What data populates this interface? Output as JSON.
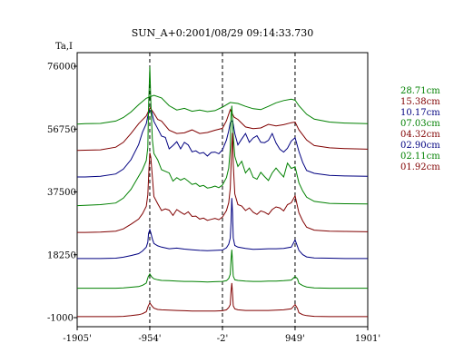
{
  "chart_data": {
    "type": "line",
    "title": "SUN_A+0:2001/08/29 09:14:33.730",
    "ylabel": "Ta,I",
    "xlabel": "",
    "xlim": [
      -1905,
      1901
    ],
    "ylim": [
      -1000,
      76000
    ],
    "x_tick_labels": [
      "-1905'",
      "-954'",
      "-2'",
      "949'",
      "1901'"
    ],
    "x_tick_values": [
      -1905,
      -954,
      -2,
      949,
      1901
    ],
    "y_tick_labels": [
      "76000",
      "56750",
      "37500",
      "18250",
      "-1000"
    ],
    "y_tick_values": [
      76000,
      56750,
      37500,
      18250,
      -1000
    ],
    "vlines": [
      -954,
      -2,
      949
    ],
    "series": [
      {
        "name": "28.71cm",
        "color": "#008000",
        "x": [
          -1905,
          -1800,
          -1600,
          -1400,
          -1300,
          -1200,
          -1100,
          -1000,
          -900,
          -800,
          -700,
          -600,
          -500,
          -400,
          -300,
          -200,
          -100,
          -2,
          100,
          200,
          300,
          400,
          500,
          600,
          700,
          800,
          900,
          949,
          1000,
          1100,
          1200,
          1400,
          1600,
          1901
        ],
        "y": [
          58300,
          58400,
          58500,
          59200,
          60300,
          62000,
          64200,
          66200,
          67100,
          66300,
          63900,
          62600,
          63100,
          62200,
          62600,
          62100,
          62400,
          63500,
          64900,
          64600,
          63700,
          63000,
          62700,
          63700,
          64800,
          65500,
          65900,
          65600,
          63900,
          61300,
          59800,
          58900,
          58600,
          58400
        ]
      },
      {
        "name": "15.38cm",
        "color": "#800000",
        "x": [
          -1905,
          -1800,
          -1600,
          -1400,
          -1300,
          -1200,
          -1100,
          -1000,
          -950,
          -900,
          -850,
          -800,
          -700,
          -600,
          -500,
          -400,
          -300,
          -200,
          -100,
          -2,
          50,
          100,
          150,
          200,
          300,
          400,
          500,
          600,
          700,
          800,
          900,
          949,
          1000,
          1100,
          1200,
          1400,
          1600,
          1901
        ],
        "y": [
          50200,
          50300,
          50400,
          51200,
          52700,
          55400,
          58400,
          60800,
          63300,
          61600,
          59700,
          59200,
          56400,
          55400,
          55600,
          56500,
          55400,
          55700,
          56400,
          57000,
          59300,
          62700,
          60400,
          59700,
          57400,
          56900,
          57100,
          58200,
          57700,
          58100,
          58700,
          58900,
          56500,
          53400,
          51700,
          51000,
          50800,
          50600
        ]
      },
      {
        "name": "10.17cm",
        "color": "#000080",
        "x": [
          -1905,
          -1800,
          -1600,
          -1400,
          -1300,
          -1200,
          -1100,
          -1050,
          -1000,
          -970,
          -954,
          -930,
          -900,
          -850,
          -800,
          -750,
          -700,
          -650,
          -600,
          -550,
          -500,
          -450,
          -400,
          -350,
          -300,
          -250,
          -200,
          -150,
          -100,
          -50,
          -2,
          50,
          80,
          100,
          130,
          160,
          200,
          250,
          300,
          350,
          400,
          450,
          500,
          550,
          600,
          650,
          700,
          750,
          800,
          850,
          900,
          949,
          1000,
          1050,
          1100,
          1200,
          1400,
          1600,
          1901
        ],
        "y": [
          42100,
          42100,
          42300,
          43000,
          44500,
          47400,
          52000,
          55800,
          58400,
          61800,
          62400,
          62100,
          59100,
          56900,
          54600,
          54200,
          50700,
          51700,
          52900,
          50700,
          52700,
          51900,
          49800,
          50100,
          49300,
          49600,
          48500,
          49600,
          49700,
          49200,
          50400,
          53400,
          56200,
          58700,
          59400,
          55400,
          51900,
          53700,
          55400,
          52700,
          54000,
          54700,
          52700,
          52600,
          53300,
          55400,
          52500,
          50600,
          49700,
          50900,
          53100,
          54100,
          49900,
          46500,
          44100,
          43200,
          42600,
          42400,
          42300
        ]
      },
      {
        "name": "07.03cm",
        "color": "#008000",
        "x": [
          -1905,
          -1800,
          -1600,
          -1400,
          -1300,
          -1200,
          -1100,
          -1050,
          -1000,
          -980,
          -970,
          -954,
          -940,
          -920,
          -900,
          -850,
          -800,
          -750,
          -700,
          -650,
          -600,
          -550,
          -500,
          -450,
          -400,
          -350,
          -300,
          -250,
          -200,
          -150,
          -100,
          -50,
          -2,
          50,
          80,
          100,
          110,
          120,
          140,
          160,
          200,
          250,
          300,
          350,
          400,
          450,
          500,
          550,
          600,
          650,
          700,
          750,
          800,
          850,
          900,
          949,
          1000,
          1050,
          1100,
          1200,
          1400,
          1600,
          1901
        ],
        "y": [
          33300,
          33400,
          33600,
          34100,
          35600,
          38300,
          42300,
          44300,
          47100,
          51100,
          63100,
          75900,
          65100,
          53500,
          49300,
          47300,
          44300,
          43800,
          43300,
          40800,
          41900,
          41100,
          41700,
          40800,
          39800,
          40100,
          39200,
          39500,
          38700,
          38900,
          39300,
          38800,
          39600,
          41900,
          44800,
          50600,
          60700,
          63900,
          54800,
          48400,
          45300,
          46900,
          43300,
          44800,
          42000,
          41400,
          43500,
          42200,
          41000,
          43300,
          44800,
          43400,
          42100,
          46300,
          44700,
          45200,
          40300,
          37800,
          35900,
          34600,
          34000,
          33900,
          33800
        ]
      },
      {
        "name": "04.32cm",
        "color": "#800000",
        "x": [
          -1905,
          -1800,
          -1600,
          -1400,
          -1300,
          -1200,
          -1100,
          -1050,
          -1000,
          -980,
          -965,
          -954,
          -940,
          -920,
          -900,
          -850,
          -800,
          -750,
          -700,
          -650,
          -600,
          -550,
          -500,
          -450,
          -400,
          -350,
          -300,
          -250,
          -200,
          -150,
          -100,
          -50,
          -2,
          50,
          80,
          100,
          110,
          120,
          130,
          140,
          160,
          200,
          250,
          300,
          350,
          400,
          450,
          500,
          550,
          600,
          650,
          700,
          750,
          800,
          850,
          900,
          949,
          1000,
          1050,
          1100,
          1200,
          1400,
          1600,
          1901
        ],
        "y": [
          25100,
          25100,
          25200,
          25500,
          26200,
          27600,
          29200,
          30800,
          33100,
          36600,
          44100,
          49500,
          48100,
          42100,
          36100,
          33900,
          31800,
          32300,
          31900,
          30300,
          32100,
          31300,
          30600,
          31400,
          30000,
          30100,
          29200,
          29500,
          28800,
          29100,
          29400,
          29000,
          29800,
          31800,
          34200,
          38600,
          45100,
          51800,
          55600,
          45900,
          36900,
          33600,
          33200,
          31800,
          32600,
          31300,
          30600,
          31700,
          31300,
          30600,
          32100,
          32900,
          32600,
          31700,
          33600,
          34200,
          36300,
          31100,
          28600,
          26700,
          25800,
          25500,
          25400,
          25300
        ]
      },
      {
        "name": "02.90cm",
        "color": "#000080",
        "x": [
          -1905,
          -1800,
          -1600,
          -1400,
          -1300,
          -1200,
          -1100,
          -1050,
          -1000,
          -980,
          -970,
          -954,
          -940,
          -920,
          -900,
          -850,
          -800,
          -700,
          -600,
          -500,
          -400,
          -300,
          -200,
          -100,
          -2,
          50,
          80,
          100,
          110,
          120,
          130,
          140,
          160,
          200,
          300,
          400,
          500,
          600,
          700,
          800,
          900,
          949,
          1000,
          1050,
          1100,
          1200,
          1400,
          1600,
          1901
        ],
        "y": [
          17100,
          17100,
          17100,
          17200,
          17500,
          18000,
          18600,
          19400,
          20600,
          22100,
          24800,
          25900,
          25000,
          23100,
          21700,
          21000,
          20600,
          20100,
          20300,
          20000,
          19800,
          19600,
          19500,
          19600,
          19700,
          20400,
          21500,
          23400,
          27900,
          35600,
          31100,
          23400,
          21100,
          20600,
          20200,
          19900,
          20000,
          20100,
          20100,
          20200,
          20600,
          22800,
          19600,
          18300,
          17600,
          17300,
          17200,
          17100,
          17100
        ]
      },
      {
        "name": "02.11cm",
        "color": "#008000",
        "x": [
          -1905,
          -1800,
          -1600,
          -1400,
          -1300,
          -1200,
          -1100,
          -1050,
          -1000,
          -975,
          -954,
          -930,
          -900,
          -850,
          -800,
          -700,
          -600,
          -500,
          -400,
          -300,
          -200,
          -100,
          -2,
          50,
          80,
          100,
          110,
          120,
          130,
          140,
          160,
          200,
          300,
          400,
          500,
          600,
          700,
          800,
          900,
          949,
          980,
          1000,
          1050,
          1100,
          1200,
          1400,
          1600,
          1901
        ],
        "y": [
          8000,
          8000,
          8000,
          8000,
          8100,
          8300,
          8500,
          8900,
          9600,
          11500,
          12400,
          11500,
          10900,
          10600,
          10400,
          10300,
          10200,
          10100,
          10100,
          10000,
          9900,
          10000,
          10100,
          10300,
          11000,
          12300,
          16500,
          19800,
          16000,
          11700,
          10600,
          10400,
          10200,
          10100,
          10100,
          10200,
          10200,
          10300,
          10500,
          11600,
          10900,
          9500,
          8800,
          8400,
          8100,
          8000,
          8000,
          8000
        ]
      },
      {
        "name": "01.92cm",
        "color": "#800000",
        "x": [
          -1905,
          -1800,
          -1600,
          -1400,
          -1300,
          -1200,
          -1100,
          -1050,
          -1000,
          -975,
          -954,
          -930,
          -900,
          -850,
          -800,
          -700,
          -600,
          -500,
          -400,
          -300,
          -200,
          -100,
          -2,
          50,
          80,
          100,
          110,
          120,
          130,
          140,
          160,
          200,
          300,
          400,
          500,
          600,
          700,
          800,
          900,
          949,
          980,
          1000,
          1050,
          1100,
          1200,
          1400,
          1600,
          1901
        ],
        "y": [
          -700,
          -700,
          -700,
          -700,
          -600,
          -400,
          -100,
          200,
          800,
          2500,
          3500,
          2700,
          1900,
          1500,
          1400,
          1300,
          1200,
          1100,
          1000,
          1000,
          1000,
          1000,
          1100,
          1400,
          2100,
          3000,
          6900,
          9600,
          6400,
          2600,
          1700,
          1400,
          1200,
          1200,
          1200,
          1200,
          1300,
          1400,
          1700,
          3000,
          1800,
          500,
          -100,
          -400,
          -600,
          -700,
          -700,
          -700
        ]
      }
    ]
  }
}
